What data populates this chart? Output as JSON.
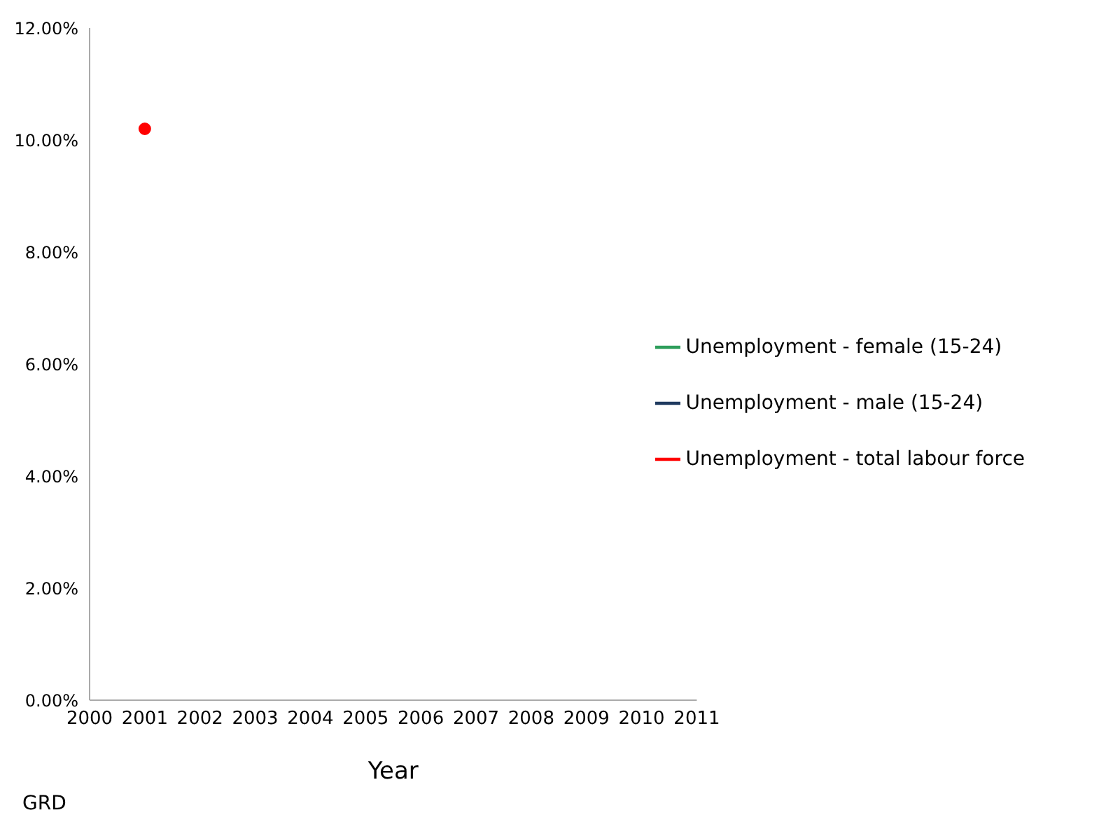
{
  "chart_data": {
    "type": "line",
    "xlabel": "Year",
    "categories": [
      "2000",
      "2001",
      "2002",
      "2003",
      "2004",
      "2005",
      "2006",
      "2007",
      "2008",
      "2009",
      "2010",
      "2011"
    ],
    "series": [
      {
        "name": "Unemployment - male (15-24)",
        "color": "#1f3a5f",
        "values": [
          null,
          null,
          null,
          null,
          null,
          null,
          null,
          null,
          null,
          null,
          null,
          null
        ]
      },
      {
        "name": "Unemployment - female (15-24)",
        "color": "#2e9e5b",
        "values": [
          null,
          null,
          null,
          null,
          null,
          null,
          null,
          null,
          null,
          null,
          null,
          null
        ]
      },
      {
        "name": "Unemployment - total labour force",
        "color": "#ff0000",
        "values": [
          null,
          10.2,
          null,
          null,
          null,
          null,
          null,
          null,
          null,
          null,
          null,
          null
        ]
      }
    ],
    "ylim": [
      0,
      12
    ],
    "yticks": [
      {
        "value": 0,
        "label": "0.00%"
      },
      {
        "value": 2,
        "label": "2.00%"
      },
      {
        "value": 4,
        "label": "4.00%"
      },
      {
        "value": 6,
        "label": "6.00%"
      },
      {
        "value": 8,
        "label": "8.00%"
      },
      {
        "value": 10,
        "label": "10.00%"
      },
      {
        "value": 12,
        "label": "12.00%"
      }
    ],
    "grid": false,
    "legend": "right",
    "marker": "circle",
    "line_style": "solid",
    "annotations": [
      "GRD"
    ]
  }
}
